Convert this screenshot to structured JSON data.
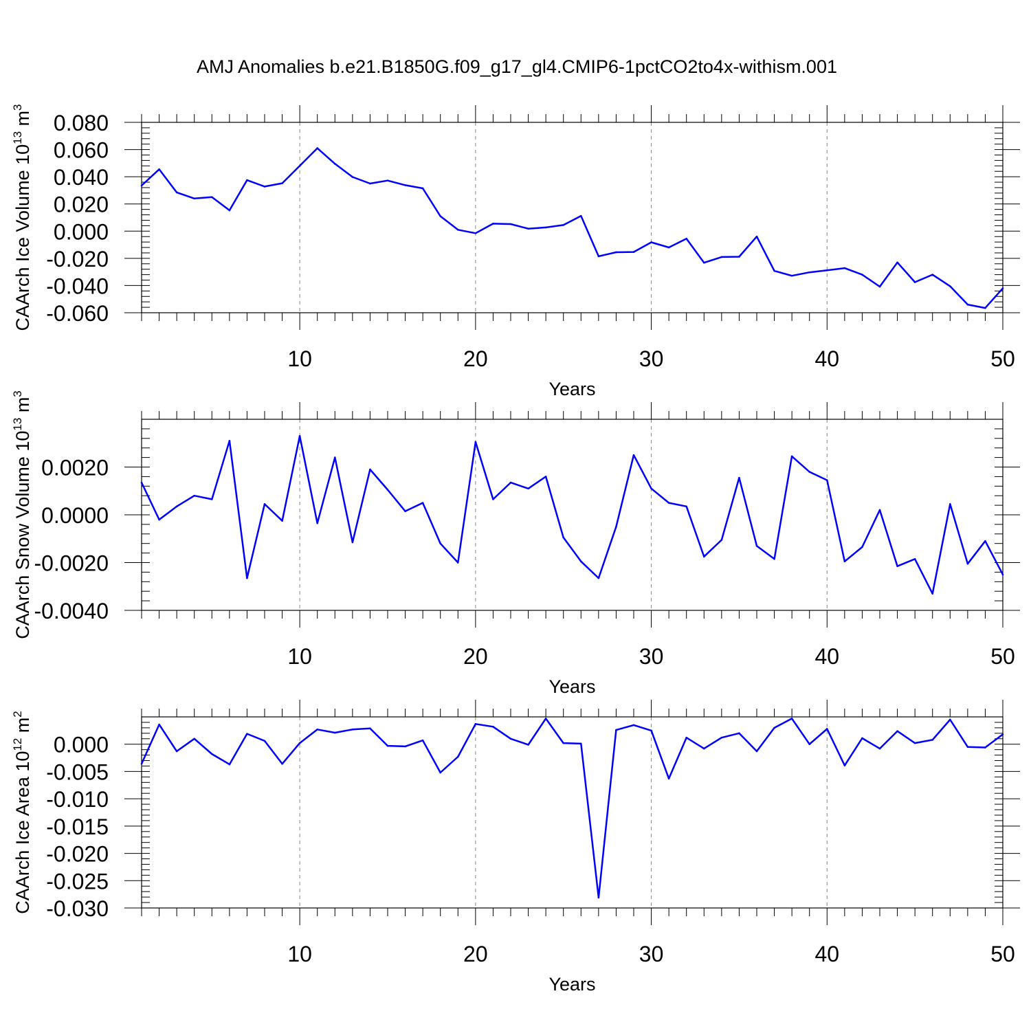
{
  "title": "AMJ Anomalies b.e21.B1850G.f09_g17_gl4.CMIP6-1pctCO2to4x-withism.001",
  "line_color": "#0000ff",
  "chart_data": [
    {
      "type": "line",
      "title": "AMJ Anomalies b.e21.B1850G.f09_g17_gl4.CMIP6-1pctCO2to4x-withism.001",
      "xlabel": "Years",
      "ylabel": {
        "text": "CAArch Ice Volume 10",
        "sup": "13",
        "unit": " m",
        "unit_sup": "3"
      },
      "xlim": [
        1,
        50
      ],
      "ylim": [
        -0.06,
        0.08
      ],
      "xticks": [
        10,
        20,
        30,
        40,
        50
      ],
      "yticks": [
        -0.06,
        -0.04,
        -0.02,
        0.0,
        0.02,
        0.04,
        0.06,
        0.08
      ],
      "ytick_labels": [
        "-0.060",
        "-0.040",
        "-0.020",
        "0.000",
        "0.020",
        "0.040",
        "0.060",
        "0.080"
      ],
      "y_minor_step": 0.004,
      "grid": "vertical dashed at major x ticks",
      "series": [
        {
          "name": "CAArch Ice Volume",
          "x": [
            1,
            2,
            3,
            4,
            5,
            6,
            7,
            8,
            9,
            10,
            11,
            12,
            13,
            14,
            15,
            16,
            17,
            18,
            19,
            20,
            21,
            22,
            23,
            24,
            25,
            26,
            27,
            28,
            29,
            30,
            31,
            32,
            33,
            34,
            35,
            36,
            37,
            38,
            39,
            40,
            41,
            42,
            43,
            44,
            45,
            46,
            47,
            48,
            49,
            50
          ],
          "values": [
            0.0335,
            0.0455,
            0.0285,
            0.024,
            0.025,
            0.0153,
            0.0375,
            0.0328,
            0.0352,
            0.048,
            0.061,
            0.0495,
            0.0398,
            0.035,
            0.0372,
            0.0338,
            0.0315,
            0.011,
            0.001,
            -0.0015,
            0.0055,
            0.0052,
            0.0018,
            0.0027,
            0.0045,
            0.0112,
            -0.0185,
            -0.0155,
            -0.0153,
            -0.0082,
            -0.012,
            -0.0055,
            -0.0232,
            -0.019,
            -0.0188,
            -0.004,
            -0.0292,
            -0.0328,
            -0.0303,
            -0.0288,
            -0.0272,
            -0.032,
            -0.0408,
            -0.023,
            -0.0375,
            -0.032,
            -0.0405,
            -0.054,
            -0.0565,
            -0.042
          ]
        }
      ]
    },
    {
      "type": "line",
      "xlabel": "Years",
      "ylabel": {
        "text": "CAArch Snow Volume 10",
        "sup": "13",
        "unit": " m",
        "unit_sup": "3"
      },
      "xlim": [
        1,
        50
      ],
      "ylim": [
        -0.004,
        0.004
      ],
      "xticks": [
        10,
        20,
        30,
        40,
        50
      ],
      "yticks": [
        -0.004,
        -0.002,
        0.0,
        0.002
      ],
      "ytick_labels": [
        "-0.0040",
        "-0.0020",
        "0.0000",
        "0.0020"
      ],
      "y_minor_step": 0.0004,
      "grid": "vertical dashed at major x ticks",
      "series": [
        {
          "name": "CAArch Snow Volume",
          "x": [
            1,
            2,
            3,
            4,
            5,
            6,
            7,
            8,
            9,
            10,
            11,
            12,
            13,
            14,
            15,
            16,
            17,
            18,
            19,
            20,
            21,
            22,
            23,
            24,
            25,
            26,
            27,
            28,
            29,
            30,
            31,
            32,
            33,
            34,
            35,
            36,
            37,
            38,
            39,
            40,
            41,
            42,
            43,
            44,
            45,
            46,
            47,
            48,
            49,
            50
          ],
          "values": [
            0.00135,
            -0.0002,
            0.00035,
            0.0008,
            0.00065,
            0.0031,
            -0.00265,
            0.00045,
            -0.00025,
            0.0033,
            -0.00035,
            0.0024,
            -0.00115,
            0.0019,
            0.00105,
            0.00015,
            0.0005,
            -0.0012,
            -0.002,
            0.00305,
            0.00065,
            0.00135,
            0.0011,
            0.0016,
            -0.00095,
            -0.00195,
            -0.00265,
            -0.0005,
            0.0025,
            0.0011,
            0.0005,
            0.00035,
            -0.00175,
            -0.00105,
            0.00155,
            -0.0013,
            -0.00185,
            0.00245,
            0.0018,
            0.00145,
            -0.00195,
            -0.00135,
            0.0002,
            -0.00215,
            -0.00185,
            -0.0033,
            0.00045,
            -0.00205,
            -0.0011,
            -0.0025
          ]
        }
      ]
    },
    {
      "type": "line",
      "xlabel": "Years",
      "ylabel": {
        "text": "CAArch Ice Area 10",
        "sup": "12",
        "unit": " m",
        "unit_sup": "2"
      },
      "xlim": [
        1,
        50
      ],
      "ylim": [
        -0.03,
        0.005
      ],
      "xticks": [
        10,
        20,
        30,
        40,
        50
      ],
      "yticks": [
        -0.03,
        -0.025,
        -0.02,
        -0.015,
        -0.01,
        -0.005,
        0.0
      ],
      "ytick_labels": [
        "-0.030",
        "-0.025",
        "-0.020",
        "-0.015",
        "-0.010",
        "-0.005",
        "0.000"
      ],
      "y_minor_step": 0.001,
      "grid": "vertical dashed at major x ticks",
      "series": [
        {
          "name": "CAArch Ice Area",
          "x": [
            1,
            2,
            3,
            4,
            5,
            6,
            7,
            8,
            9,
            10,
            11,
            12,
            13,
            14,
            15,
            16,
            17,
            18,
            19,
            20,
            21,
            22,
            23,
            24,
            25,
            26,
            27,
            28,
            29,
            30,
            31,
            32,
            33,
            34,
            35,
            36,
            37,
            38,
            39,
            40,
            41,
            42,
            43,
            44,
            45,
            46,
            47,
            48,
            49,
            50
          ],
          "values": [
            -0.0036,
            0.0036,
            -0.0013,
            0.001,
            -0.0018,
            -0.0037,
            0.0019,
            0.0006,
            -0.0036,
            0.0002,
            0.0027,
            0.0021,
            0.0027,
            0.0029,
            -0.0003,
            -0.0004,
            0.0007,
            -0.0052,
            -0.0023,
            0.0037,
            0.0032,
            0.001,
            -0.0001,
            0.0047,
            0.0002,
            0.0001,
            -0.0281,
            0.0026,
            0.0035,
            0.0025,
            -0.0063,
            0.0012,
            -0.0008,
            0.0012,
            0.002,
            -0.0013,
            0.003,
            0.0047,
            0.0,
            0.0028,
            -0.0039,
            0.0011,
            -0.0008,
            0.0024,
            0.0002,
            0.0008,
            0.0045,
            -0.0005,
            -0.0006,
            0.0018
          ]
        }
      ]
    }
  ]
}
